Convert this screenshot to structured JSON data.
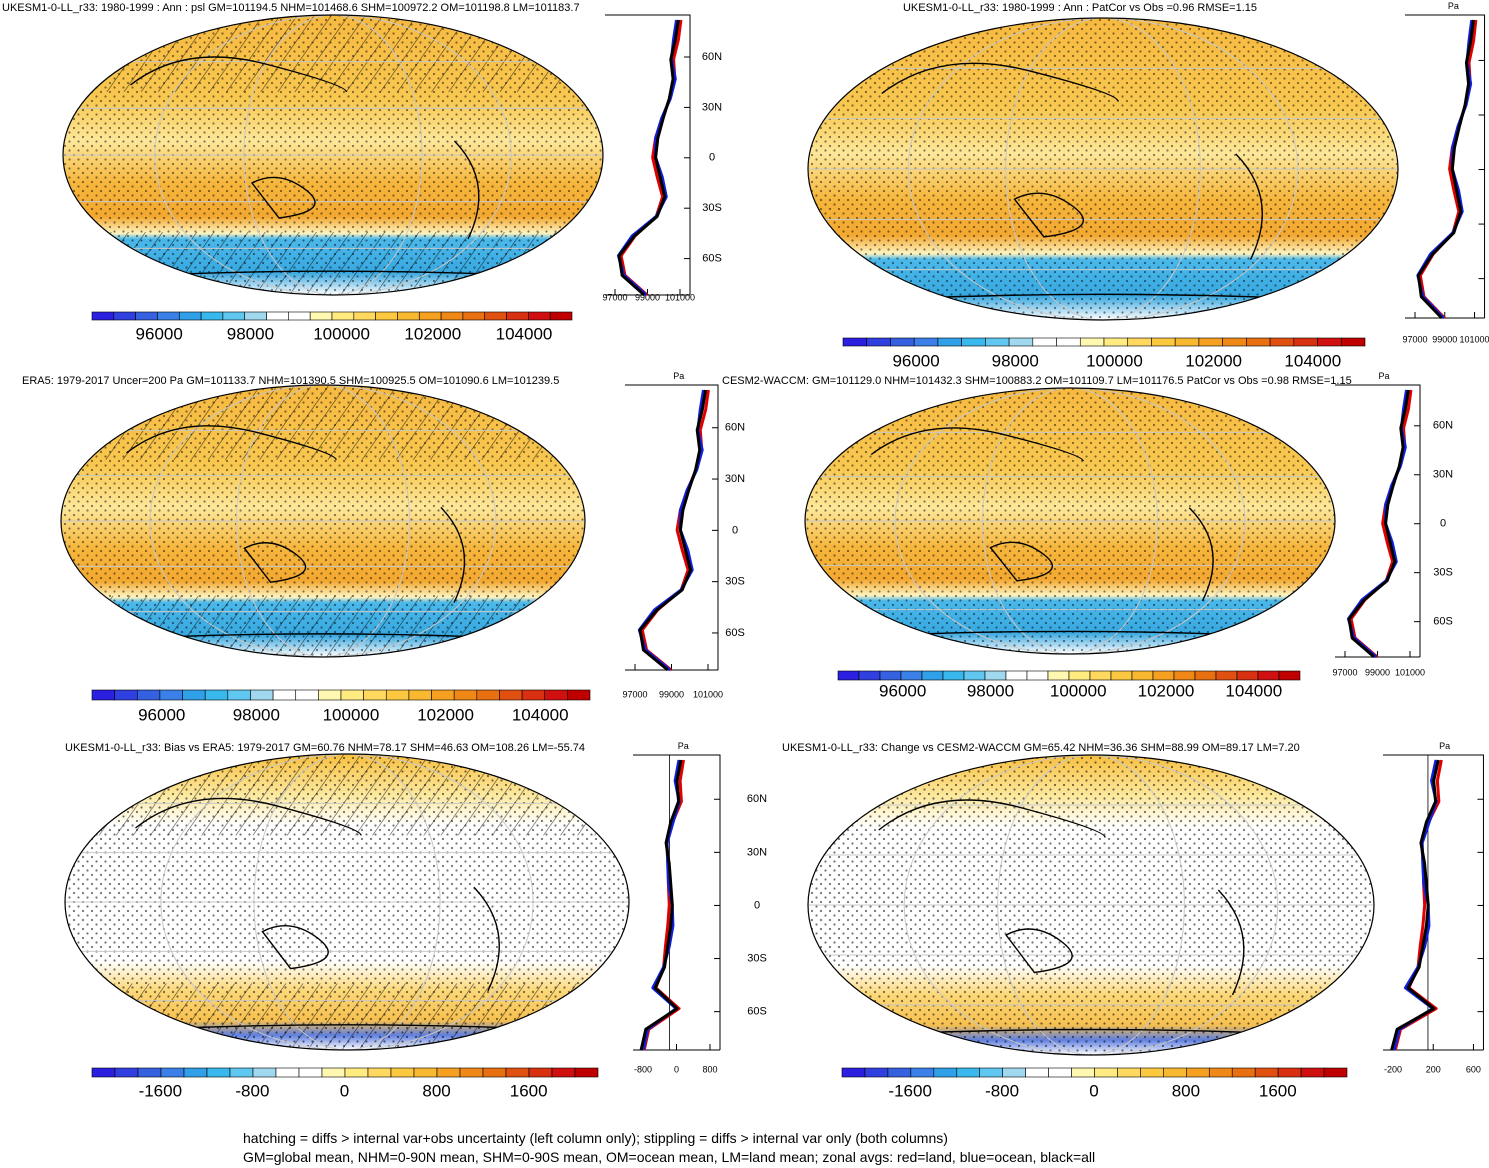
{
  "panels": [
    {
      "title": "UKESM1-0-LL_r33: 1980-1999 : Ann : psl GM=101194.5 NHM=101468.6 SHM=100972.2 OM=101198.8 LM=101183.7",
      "colorbar_ticks": [
        96000,
        98000,
        100000,
        102000,
        104000
      ],
      "zonal": {
        "lat_labels": [
          "60N",
          "30N",
          "0",
          "30S",
          "60S"
        ],
        "x_ticks": [
          97000,
          99000,
          101000
        ]
      }
    },
    {
      "title": "UKESM1-0-LL_r33: 1980-1999 : Ann : PatCor vs Obs =0.96 RMSE=1.15",
      "colorbar_ticks": [
        96000,
        98000,
        100000,
        102000,
        104000
      ],
      "zonal": {
        "unit": "Pa",
        "x_ticks": [
          97000,
          99000,
          101000
        ]
      }
    },
    {
      "title": "ERA5: 1979-2017 Uncer=200 Pa GM=101133.7 NHM=101390.5 SHM=100925.5 OM=101090.6 LM=101239.5",
      "colorbar_ticks": [
        96000,
        98000,
        100000,
        102000,
        104000
      ],
      "zonal": {
        "unit": "Pa",
        "lat_labels": [
          "60N",
          "30N",
          "0",
          "30S",
          "60S"
        ],
        "x_ticks": [
          97000,
          99000,
          101000
        ]
      }
    },
    {
      "title": "CESM2-WACCM: GM=101129.0 NHM=101432.3 SHM=100883.2 OM=101109.7 LM=101176.5 PatCor vs Obs =0.98 RMSE=1.15",
      "colorbar_ticks": [
        96000,
        98000,
        100000,
        102000,
        104000
      ],
      "zonal": {
        "unit": "Pa",
        "lat_labels": [
          "60N",
          "30N",
          "0",
          "30S",
          "60S"
        ],
        "x_ticks": [
          97000,
          99000,
          101000
        ]
      }
    },
    {
      "title": "UKESM1-0-LL_r33: Bias vs ERA5: 1979-2017 GM=60.76 NHM=78.17 SHM=46.63 OM=108.26 LM=-55.74",
      "colorbar_ticks": [
        -1600,
        -800,
        0,
        800,
        1600
      ],
      "zonal": {
        "unit": "Pa",
        "lat_labels": [
          "60N",
          "30N",
          "0",
          "30S",
          "60S"
        ],
        "x_ticks": [
          -800,
          0,
          800
        ]
      }
    },
    {
      "title": "UKESM1-0-LL_r33: Change vs CESM2-WACCM GM=65.42 NHM=36.36 SHM=88.99 OM=89.17 LM=7.20",
      "colorbar_ticks": [
        -1600,
        -800,
        0,
        800,
        1600
      ],
      "zonal": {
        "unit": "Pa",
        "x_ticks": [
          -200,
          200,
          600
        ]
      }
    }
  ],
  "footer": [
    "hatching = diffs > internal var+obs uncertainty (left column only); stippling = diffs > internal var only (both columns)",
    "GM=global mean, NHM=0-90N mean, SHM=0-90S mean, OM=ocean mean, LM=land mean; zonal avgs: red=land, blue=ocean, black=all"
  ]
}
